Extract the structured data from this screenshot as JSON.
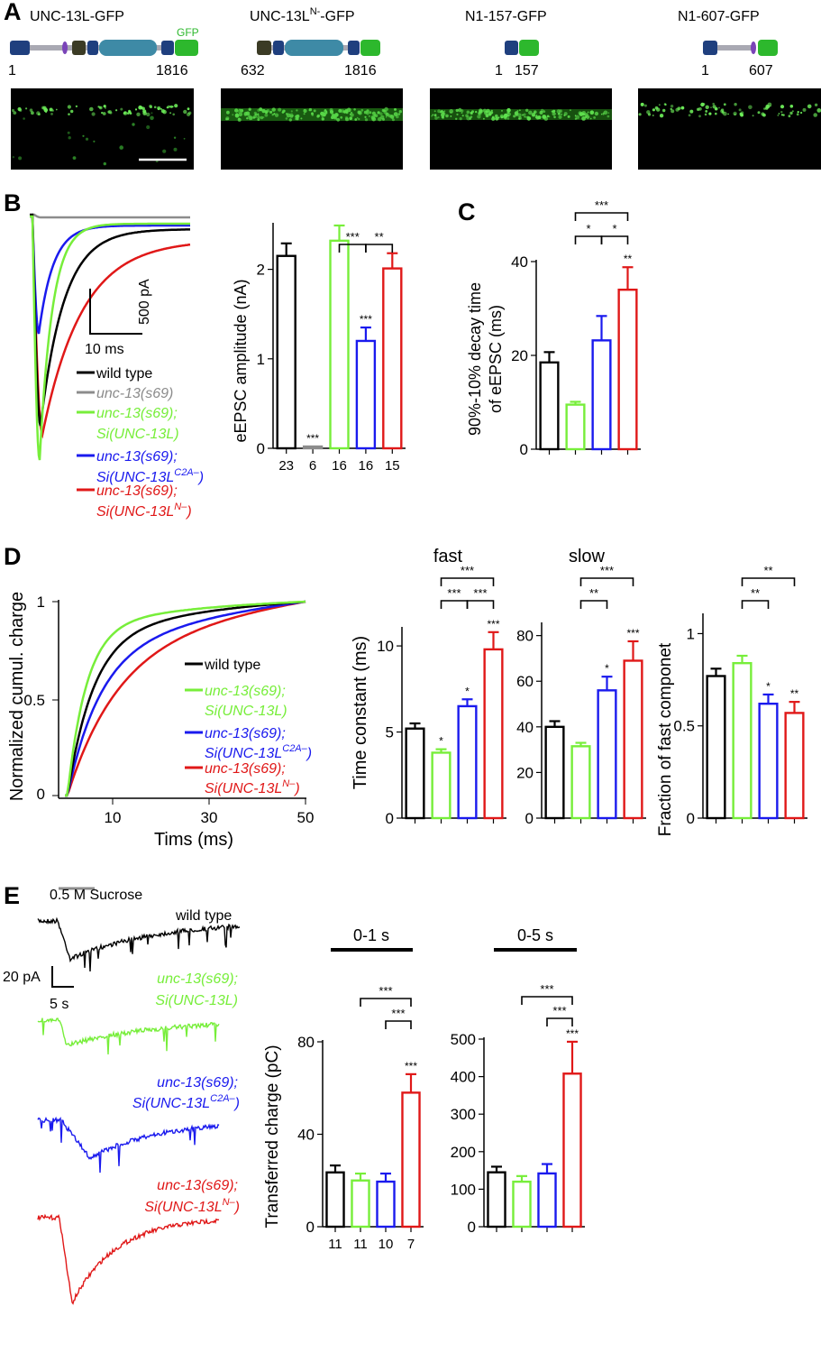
{
  "colors": {
    "wt": "#000000",
    "null": "#8c8c8c",
    "green": "#77ee3a",
    "blue": "#1a1aee",
    "red": "#e01818",
    "gfp": "#2db82d",
    "dom_navy": "#1f3f7e",
    "dom_teal": "#3e8aa6",
    "dom_olive": "#3b3b25",
    "dom_purple": "#7a44b8",
    "linker": "#a9a9b3"
  },
  "panel_labels": [
    "A",
    "B",
    "C",
    "D",
    "E"
  ],
  "panelA": {
    "constructs": [
      {
        "name": "UNC-13L-GFP",
        "start": "1",
        "end": "1816",
        "gfp_label": "GFP"
      },
      {
        "name": "UNC-13L",
        "sup": "N-",
        "suffix": "-GFP",
        "start": "632",
        "end": "1816"
      },
      {
        "name": "N1-157-GFP",
        "start": "1",
        "end": "157"
      },
      {
        "name": "N1-607-GFP",
        "start": "1",
        "end": "607"
      }
    ]
  },
  "genotypes": {
    "wt": "wild type",
    "s69": "unc-13(s69)",
    "s69_prefix": "unc-13(s69);",
    "si_l": "Si(UNC-13L)",
    "si_c2a_pre": "Si(UNC-13L",
    "si_c2a_sup": "C2A–",
    "si_c2a_post": ")",
    "si_n_pre": "Si(UNC-13L",
    "si_n_sup": "N–",
    "si_n_post": ")"
  },
  "panelB": {
    "scale_y": "500 pA",
    "scale_x": "10 ms",
    "chart_data": {
      "type": "bar",
      "ylabel": "eEPSC amplitude (nA)",
      "ylim": [
        0,
        2.5
      ],
      "yticks": [
        "0",
        "1",
        "2"
      ],
      "categories": [
        "wild type",
        "unc-13(s69)",
        "Si(UNC-13L)",
        "Si(UNC-13L C2A-)",
        "Si(UNC-13L N-)"
      ],
      "values": [
        2.15,
        0.02,
        2.32,
        1.2,
        2.01
      ],
      "errors": [
        0.14,
        0.0,
        0.17,
        0.15,
        0.17
      ],
      "n": [
        "23",
        "6",
        "16",
        "16",
        "15"
      ],
      "stars": [
        "",
        "***",
        "",
        "***",
        ""
      ],
      "brackets": [
        {
          "from": 2,
          "to": 3,
          "label": "***"
        },
        {
          "from": 3,
          "to": 4,
          "label": "**"
        }
      ]
    }
  },
  "panelC": {
    "chart_data": {
      "type": "bar",
      "ylabel": "90%-10% decay time of eEPSC (ms)",
      "ylim": [
        0,
        40
      ],
      "yticks": [
        "0",
        "20",
        "40"
      ],
      "values": [
        18.5,
        9.5,
        23.2,
        34
      ],
      "errors": [
        2.2,
        0.6,
        5.2,
        4.8
      ],
      "stars": [
        "",
        "",
        "",
        "**"
      ],
      "brackets": [
        {
          "from": 1,
          "to": 2,
          "label": "*"
        },
        {
          "from": 2,
          "to": 3,
          "label": "*"
        },
        {
          "from": 1,
          "to": 3,
          "label": "***"
        }
      ]
    }
  },
  "panelD": {
    "cumulative": {
      "ylabel": "Normalized cumul. charge",
      "xlabel": "Tims (ms)",
      "xticks": [
        "10",
        "30",
        "50"
      ],
      "yticks": [
        "0",
        "0.5",
        "1"
      ]
    },
    "fast": {
      "title": "fast",
      "ylabel": "Time constant (ms)",
      "ylim": [
        0,
        11
      ],
      "yticks": [
        "0",
        "5",
        "10"
      ],
      "values": [
        5.2,
        3.8,
        6.5,
        9.8
      ],
      "errors": [
        0.3,
        0.2,
        0.4,
        1.0
      ],
      "stars": [
        "",
        "*",
        "*",
        "***"
      ],
      "brackets": [
        {
          "from": 1,
          "to": 2,
          "label": "***"
        },
        {
          "from": 2,
          "to": 3,
          "label": "***"
        },
        {
          "from": 1,
          "to": 3,
          "label": "***"
        }
      ]
    },
    "slow": {
      "title": "slow",
      "ylabel": "",
      "ylim": [
        0,
        85
      ],
      "yticks": [
        "0",
        "20",
        "40",
        "60",
        "80"
      ],
      "values": [
        40,
        31.5,
        56,
        69
      ],
      "errors": [
        2.5,
        1.5,
        6,
        8.5
      ],
      "stars": [
        "",
        "",
        "*",
        "***"
      ],
      "brackets": [
        {
          "from": 1,
          "to": 2,
          "label": "**"
        },
        {
          "from": 1,
          "to": 3,
          "label": "***"
        }
      ]
    },
    "fraction": {
      "title": "",
      "ylabel": "Fraction of fast componet",
      "ylim": [
        0,
        1.1
      ],
      "yticks": [
        "0",
        "0.5",
        "1"
      ],
      "values": [
        0.77,
        0.84,
        0.62,
        0.57
      ],
      "errors": [
        0.04,
        0.04,
        0.05,
        0.06
      ],
      "stars": [
        "",
        "",
        "*",
        "**"
      ],
      "brackets": [
        {
          "from": 1,
          "to": 2,
          "label": "**"
        },
        {
          "from": 1,
          "to": 3,
          "label": "**"
        }
      ]
    }
  },
  "panelE": {
    "sucrose": "0.5 M Sucrose",
    "scale_y": "20 pA",
    "scale_x": "5 s",
    "bar1": {
      "title": "0-1 s",
      "ylabel": "Transferred charge (pC)",
      "ylim": [
        0,
        80
      ],
      "yticks": [
        "0",
        "40",
        "80"
      ],
      "values": [
        23.5,
        20,
        19.5,
        58
      ],
      "errors": [
        3,
        3,
        3.5,
        8
      ],
      "n": [
        "11",
        "11",
        "10",
        "7"
      ],
      "stars": [
        "",
        "",
        "",
        "***"
      ],
      "brackets": [
        {
          "from": 2,
          "to": 3,
          "label": "***"
        },
        {
          "from": 1,
          "to": 3,
          "label": "***"
        }
      ]
    },
    "bar2": {
      "title": "0-5 s",
      "ylabel": "",
      "ylim": [
        0,
        500
      ],
      "yticks": [
        "0",
        "100",
        "200",
        "300",
        "400",
        "500"
      ],
      "values": [
        145,
        120,
        142,
        408
      ],
      "errors": [
        15,
        15,
        25,
        85
      ],
      "stars": [
        "",
        "",
        "",
        "***"
      ],
      "brackets": [
        {
          "from": 2,
          "to": 3,
          "label": "***"
        },
        {
          "from": 1,
          "to": 3,
          "label": "***"
        }
      ]
    }
  }
}
